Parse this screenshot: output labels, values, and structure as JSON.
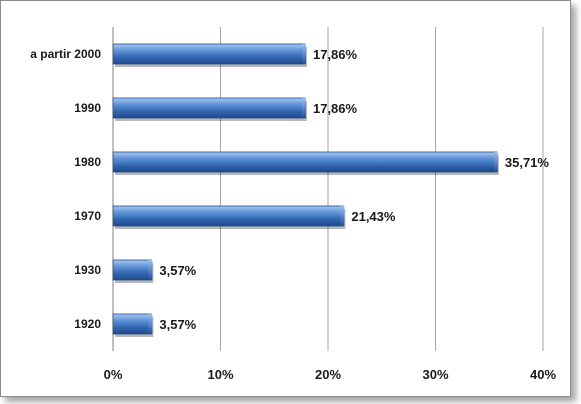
{
  "chart_data": {
    "type": "bar",
    "orientation": "horizontal",
    "categories": [
      "a partir 2000",
      "1990",
      "1980",
      "1970",
      "1930",
      "1920"
    ],
    "values": [
      17.86,
      17.86,
      35.71,
      21.43,
      3.57,
      3.57
    ],
    "value_labels": [
      "17,86%",
      "17,86%",
      "35,71%",
      "21,43%",
      "3,57%",
      "3,57%"
    ],
    "title": "",
    "xlabel": "",
    "ylabel": "",
    "xlim": [
      0,
      40
    ],
    "x_ticks": [
      0,
      10,
      20,
      30,
      40
    ],
    "x_tick_labels": [
      "0%",
      "10%",
      "20%",
      "30%",
      "40%"
    ],
    "grid": "vertical",
    "legend": "none",
    "bar_color": "#3f77c3"
  }
}
